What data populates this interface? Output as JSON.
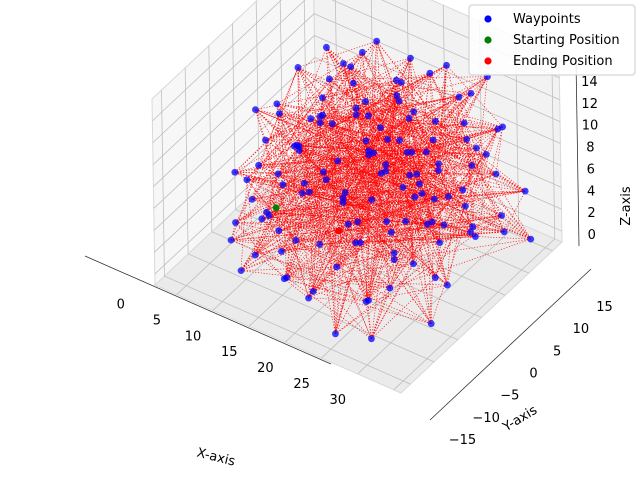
{
  "chart_data": {
    "type": "scatter",
    "projection": "3d",
    "xlabel": "X-axis",
    "ylabel": "Y-axis",
    "zlabel": "Z-axis",
    "xlim": [
      -3,
      31
    ],
    "ylim": [
      -17,
      17
    ],
    "zlim": [
      -1,
      16
    ],
    "x_ticks": [
      0,
      5,
      10,
      15,
      20,
      25,
      30
    ],
    "y_ticks": [
      -15,
      -10,
      -5,
      0,
      5,
      10,
      15
    ],
    "z_ticks": [
      0,
      2,
      4,
      6,
      8,
      10,
      12,
      14
    ],
    "grid": true,
    "legend_position": "top-right",
    "legend": [
      {
        "label": "Waypoints",
        "color": "#0000ff"
      },
      {
        "label": "Starting Position",
        "color": "#008000"
      },
      {
        "label": "Ending Position",
        "color": "#ff0000"
      }
    ],
    "path_color": "#ff0000",
    "path_style": "dotted",
    "series": [
      {
        "name": "Waypoints",
        "color": "#0000ff",
        "points": [
          [
            0,
            0,
            9
          ],
          [
            3,
            -2,
            1
          ],
          [
            5,
            2,
            2
          ],
          [
            6,
            6,
            14
          ],
          [
            8,
            8,
            12
          ],
          [
            10,
            -4,
            6
          ],
          [
            12,
            -12,
            2
          ],
          [
            14,
            -8,
            4
          ],
          [
            15,
            10,
            14
          ],
          [
            18,
            13,
            13
          ],
          [
            20,
            -14,
            0
          ],
          [
            22,
            -10,
            2
          ],
          [
            25,
            -14,
            1
          ],
          [
            27,
            4,
            4
          ],
          [
            28,
            14,
            4
          ],
          [
            30,
            12,
            1
          ],
          [
            28,
            -6,
            0
          ],
          [
            26,
            0,
            6
          ],
          [
            24,
            8,
            10
          ],
          [
            22,
            12,
            12
          ],
          [
            19,
            4,
            9
          ],
          [
            17,
            -2,
            11
          ],
          [
            16,
            -6,
            8
          ],
          [
            13,
            4,
            7
          ],
          [
            11,
            8,
            5
          ],
          [
            9,
            -8,
            8
          ],
          [
            7,
            -10,
            10
          ],
          [
            6,
            -4,
            12
          ],
          [
            8,
            2,
            10
          ],
          [
            10,
            6,
            9
          ],
          [
            12,
            -2,
            12
          ],
          [
            14,
            2,
            13
          ],
          [
            16,
            6,
            12
          ],
          [
            18,
            -4,
            13
          ],
          [
            20,
            0,
            12
          ],
          [
            22,
            4,
            11
          ],
          [
            24,
            -2,
            10
          ],
          [
            26,
            6,
            9
          ],
          [
            27,
            -8,
            6
          ],
          [
            25,
            -10,
            4
          ],
          [
            23,
            -6,
            5
          ],
          [
            21,
            -10,
            7
          ],
          [
            19,
            -12,
            5
          ],
          [
            17,
            -14,
            3
          ],
          [
            15,
            -12,
            1
          ],
          [
            13,
            -14,
            3
          ],
          [
            11,
            -12,
            6
          ],
          [
            9,
            -14,
            4
          ],
          [
            7,
            -14,
            2
          ],
          [
            5,
            -12,
            5
          ],
          [
            4,
            -8,
            7
          ],
          [
            3,
            4,
            5
          ],
          [
            4,
            8,
            8
          ],
          [
            6,
            12,
            6
          ],
          [
            8,
            14,
            4
          ],
          [
            10,
            12,
            2
          ],
          [
            12,
            14,
            6
          ],
          [
            14,
            12,
            8
          ],
          [
            16,
            14,
            3
          ],
          [
            18,
            10,
            2
          ],
          [
            20,
            8,
            6
          ],
          [
            22,
            10,
            4
          ],
          [
            24,
            12,
            7
          ],
          [
            26,
            12,
            2
          ],
          [
            28,
            8,
            8
          ],
          [
            29,
            2,
            5
          ],
          [
            29,
            -4,
            3
          ],
          [
            27,
            -12,
            8
          ],
          [
            25,
            -4,
            12
          ],
          [
            23,
            0,
            8
          ],
          [
            21,
            4,
            3
          ],
          [
            19,
            8,
            1
          ],
          [
            17,
            10,
            6
          ],
          [
            15,
            8,
            3
          ],
          [
            13,
            10,
            10
          ],
          [
            11,
            4,
            13
          ],
          [
            9,
            0,
            11
          ],
          [
            7,
            4,
            3
          ],
          [
            5,
            8,
            10
          ],
          [
            4,
            -4,
            9
          ],
          [
            6,
            -8,
            4
          ],
          [
            8,
            -4,
            1
          ],
          [
            10,
            -6,
            11
          ],
          [
            12,
            -8,
            9
          ],
          [
            14,
            -4,
            10
          ],
          [
            16,
            -10,
            12
          ],
          [
            18,
            -8,
            7
          ],
          [
            20,
            -6,
            9
          ],
          [
            22,
            -12,
            10
          ],
          [
            24,
            -8,
            8
          ],
          [
            26,
            -6,
            11
          ],
          [
            28,
            -2,
            10
          ],
          [
            27,
            10,
            11
          ],
          [
            25,
            14,
            9
          ],
          [
            23,
            14,
            13
          ],
          [
            21,
            12,
            9
          ],
          [
            19,
            14,
            10
          ],
          [
            17,
            12,
            8
          ],
          [
            15,
            14,
            11
          ],
          [
            13,
            12,
            4
          ],
          [
            11,
            14,
            9
          ],
          [
            9,
            10,
            7
          ],
          [
            7,
            8,
            12
          ],
          [
            5,
            4,
            8
          ],
          [
            3,
            0,
            4
          ],
          [
            2,
            -4,
            3
          ],
          [
            4,
            2,
            6
          ],
          [
            6,
            0,
            7
          ],
          [
            8,
            -10,
            6
          ],
          [
            10,
            -10,
            3
          ],
          [
            12,
            0,
            4
          ],
          [
            14,
            6,
            5
          ],
          [
            16,
            2,
            7
          ],
          [
            18,
            0,
            4
          ],
          [
            20,
            2,
            8
          ],
          [
            22,
            -2,
            6
          ],
          [
            24,
            2,
            3
          ],
          [
            26,
            -2,
            2
          ],
          [
            28,
            4,
            12
          ],
          [
            29,
            8,
            3
          ],
          [
            30,
            0,
            7
          ],
          [
            1,
            -6,
            6
          ],
          [
            2,
            6,
            11
          ],
          [
            13,
            -6,
            14
          ],
          [
            17,
            4,
            15
          ],
          [
            21,
            -4,
            14
          ],
          [
            11,
            6,
            15
          ],
          [
            19,
            -10,
            11
          ],
          [
            23,
            -12,
            3
          ],
          [
            9,
            12,
            13
          ],
          [
            7,
            -6,
            14
          ],
          [
            15,
            -2,
            2
          ],
          [
            25,
            6,
            5
          ],
          [
            3,
            -10,
            2
          ],
          [
            10,
            2,
            0
          ]
        ]
      },
      {
        "name": "Starting Position",
        "color": "#008000",
        "points": [
          [
            4,
            -2,
            2
          ]
        ]
      },
      {
        "name": "Ending Position",
        "color": "#ff0000",
        "points": [
          [
            10,
            2,
            0
          ]
        ]
      }
    ]
  }
}
